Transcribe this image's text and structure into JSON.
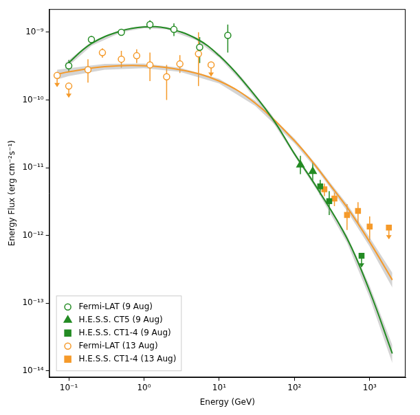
{
  "chart_data": {
    "type": "scatter",
    "x_label": "Energy (GeV)",
    "y_label": "Energy Flux (erg cm⁻²s⁻¹)",
    "log": true,
    "grid": false,
    "legend": "lower left",
    "xlim": [
      0.055,
      3000
    ],
    "ylim": [
      8e-15,
      2.2e-09
    ],
    "xticks": [
      {
        "value": 0.1,
        "label": "10⁻¹"
      },
      {
        "value": 1,
        "label": "10⁰"
      },
      {
        "value": 10,
        "label": "10¹"
      },
      {
        "value": 100,
        "label": "10²"
      },
      {
        "value": 1000,
        "label": "10³"
      }
    ],
    "yticks": [
      {
        "value": 1e-14,
        "label": "10⁻¹⁴"
      },
      {
        "value": 1e-13,
        "label": "10⁻¹³"
      },
      {
        "value": 1e-12,
        "label": "10⁻¹²"
      },
      {
        "value": 1e-11,
        "label": "10⁻¹¹"
      },
      {
        "value": 1e-10,
        "label": "10⁻¹⁰"
      },
      {
        "value": 1e-09,
        "label": "10⁻⁹"
      }
    ],
    "series": [
      {
        "type": "line",
        "color": "#238b23",
        "line_style": "solid",
        "x": [
          0.09,
          0.2,
          0.5,
          1,
          2,
          5,
          10,
          20,
          50,
          100,
          200,
          500,
          1000,
          2000
        ],
        "values": [
          3.2e-10,
          6.8e-10,
          1.05e-09,
          1.2e-09,
          1.15e-09,
          8e-10,
          4.5e-10,
          2e-10,
          5.5e-11,
          1.6e-11,
          5e-12,
          9e-13,
          1.5e-13,
          1.8e-14
        ],
        "band_low": [
          2.9e-10,
          6.3e-10,
          1e-09,
          1.15e-09,
          1.1e-09,
          7.6e-10,
          4.2e-10,
          1.85e-10,
          5e-11,
          1.5e-11,
          4.6e-12,
          7.8e-13,
          1.2e-13,
          1.3e-14
        ],
        "band_high": [
          3.5e-10,
          7.3e-10,
          1.1e-09,
          1.25e-09,
          1.2e-09,
          8.4e-10,
          4.8e-10,
          2.15e-10,
          6e-11,
          1.7e-11,
          5.4e-12,
          1e-12,
          1.8e-13,
          2.4e-14
        ]
      },
      {
        "type": "line",
        "color": "#f59a2a",
        "line_style": "solid",
        "x": [
          0.07,
          0.1,
          0.3,
          1,
          3,
          10,
          30,
          100,
          200,
          300,
          500,
          1000,
          2000
        ],
        "values": [
          2.4e-10,
          2.6e-10,
          3.1e-10,
          3.2e-10,
          2.8e-10,
          1.9e-10,
          9e-11,
          2.5e-11,
          1e-11,
          5.5e-12,
          2.6e-12,
          8e-13,
          2.2e-13
        ],
        "band_low": [
          2e-10,
          2.25e-10,
          2.8e-10,
          2.95e-10,
          2.6e-10,
          1.75e-10,
          8.2e-11,
          2.3e-11,
          9.2e-12,
          5e-12,
          2.3e-12,
          6.8e-13,
          1.7e-13
        ],
        "band_high": [
          2.8e-10,
          2.95e-10,
          3.4e-10,
          3.45e-10,
          3e-10,
          2.05e-10,
          9.8e-11,
          2.7e-11,
          1.08e-11,
          6e-12,
          2.9e-12,
          9.3e-13,
          2.8e-13
        ]
      },
      {
        "name": "Fermi-LAT (9 Aug)",
        "type": "scatter",
        "color": "#238b23",
        "marker": "circle_open",
        "x": [
          0.1,
          0.2,
          0.5,
          1.2,
          2.5,
          5.5,
          13
        ],
        "values": [
          3.2e-10,
          7.8e-10,
          1e-09,
          1.3e-09,
          1.1e-09,
          6e-10,
          9e-10
        ],
        "err_low": [
          2.6e-10,
          6.8e-10,
          9e-10,
          1.1e-09,
          8.8e-10,
          3.5e-10,
          5e-10
        ],
        "err_high": [
          3.9e-10,
          8.8e-10,
          1.1e-09,
          1.5e-09,
          1.35e-09,
          8.5e-10,
          1.3e-09
        ],
        "upper_limit": [
          false,
          false,
          false,
          false,
          false,
          false,
          false
        ]
      },
      {
        "name": "H.E.S.S. CT5 (9 Aug)",
        "type": "scatter",
        "color": "#238b23",
        "marker": "triangle",
        "x": [
          120,
          175
        ],
        "values": [
          1.1e-11,
          8.8e-12
        ],
        "err_low": [
          8e-12,
          6.5e-12
        ],
        "err_high": [
          1.5e-11,
          1.2e-11
        ],
        "upper_limit": [
          false,
          false
        ]
      },
      {
        "name": "H.E.S.S. CT1-4 (9 Aug)",
        "type": "scatter",
        "color": "#238b23",
        "marker": "square",
        "x": [
          220,
          290,
          780
        ],
        "values": [
          5.3e-12,
          3.2e-12,
          5e-13
        ],
        "err_low": [
          4e-12,
          2e-12,
          null
        ],
        "err_high": [
          6.6e-12,
          4.5e-12,
          null
        ],
        "upper_limit": [
          false,
          false,
          true
        ]
      },
      {
        "name": "Fermi-LAT (13 Aug)",
        "type": "scatter",
        "color": "#f59a2a",
        "marker": "circle_open",
        "x": [
          0.07,
          0.1,
          0.18,
          0.28,
          0.5,
          0.8,
          1.2,
          2.0,
          3.0,
          5.3,
          7.8
        ],
        "values": [
          2.3e-10,
          1.6e-10,
          2.8e-10,
          5e-10,
          4e-10,
          4.5e-10,
          3.3e-10,
          2.2e-10,
          3.4e-10,
          4.8e-10,
          3.3e-10
        ],
        "err_low": [
          null,
          null,
          1.8e-10,
          4.2e-10,
          3e-10,
          3.5e-10,
          1.9e-10,
          1e-10,
          2.5e-10,
          1.6e-10,
          null
        ],
        "err_high": [
          null,
          null,
          4e-10,
          5.8e-10,
          5.3e-10,
          5.6e-10,
          5e-10,
          3.3e-10,
          4.6e-10,
          1e-09,
          null
        ],
        "upper_limit": [
          true,
          true,
          false,
          false,
          false,
          false,
          false,
          false,
          false,
          false,
          true
        ]
      },
      {
        "name": "H.E.S.S. CT1-4 (13 Aug)",
        "type": "scatter",
        "color": "#f59a2a",
        "marker": "square",
        "x": [
          250,
          340,
          500,
          700,
          1000,
          1800
        ],
        "values": [
          4.8e-12,
          3.5e-12,
          2e-12,
          2.3e-12,
          1.35e-12,
          1.3e-12
        ],
        "err_low": [
          3.8e-12,
          2.7e-12,
          1.2e-12,
          1.5e-12,
          8.5e-13,
          null
        ],
        "err_high": [
          5.8e-12,
          4.3e-12,
          2.9e-12,
          3.1e-12,
          1.9e-12,
          null
        ],
        "upper_limit": [
          false,
          false,
          false,
          false,
          false,
          true
        ]
      }
    ]
  }
}
